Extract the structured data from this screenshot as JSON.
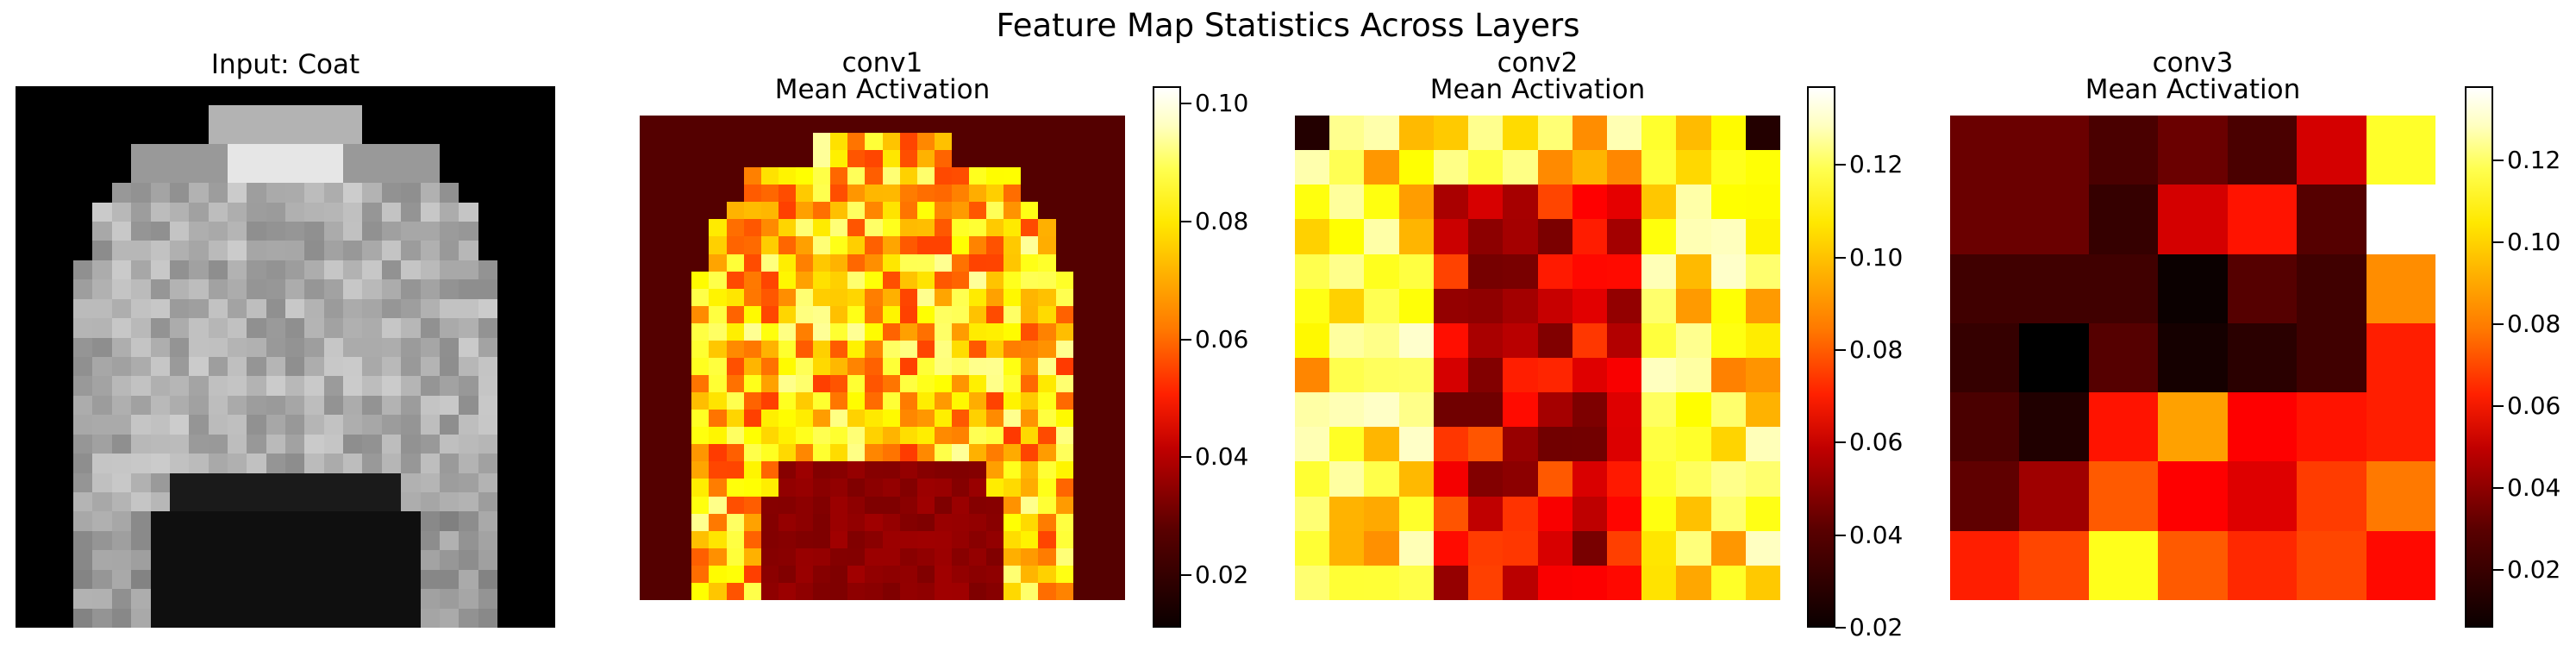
{
  "figure": {
    "title": "Feature Map Statistics Across Layers"
  },
  "chart_data": [
    {
      "type": "heatmap",
      "title": "Input: Coat",
      "colormap": "gray",
      "grid": false,
      "rows": 28,
      "cols": 28
    },
    {
      "type": "heatmap",
      "title": "conv1\nMean Activation",
      "colormap": "hot",
      "rows": 28,
      "cols": 28,
      "colorbar": {
        "vmin": 0.011,
        "vmax": 0.103,
        "ticks": [
          "0.02",
          "0.04",
          "0.06",
          "0.08",
          "0.10"
        ]
      }
    },
    {
      "type": "heatmap",
      "title": "conv2\nMean Activation",
      "colormap": "hot",
      "rows": 14,
      "cols": 14,
      "colorbar": {
        "vmin": 0.02,
        "vmax": 0.137,
        "ticks": [
          "0.02",
          "0.04",
          "0.06",
          "0.08",
          "0.10",
          "0.12"
        ]
      }
    },
    {
      "type": "heatmap",
      "title": "conv3\nMean Activation",
      "colormap": "hot",
      "rows": 7,
      "cols": 7,
      "colorbar": {
        "vmin": 0.006,
        "vmax": 0.138,
        "ticks": [
          "0.02",
          "0.04",
          "0.06",
          "0.08",
          "0.10",
          "0.12"
        ]
      },
      "values": [
        [
          0.026,
          0.026,
          0.02,
          0.026,
          0.02,
          0.046,
          0.11
        ],
        [
          0.026,
          0.026,
          0.016,
          0.046,
          0.058,
          0.022,
          0.138
        ],
        [
          0.018,
          0.018,
          0.018,
          0.008,
          0.022,
          0.018,
          0.082
        ],
        [
          0.016,
          0.006,
          0.022,
          0.01,
          0.014,
          0.018,
          0.06
        ],
        [
          0.02,
          0.012,
          0.058,
          0.086,
          0.054,
          0.058,
          0.06
        ],
        [
          0.024,
          0.036,
          0.072,
          0.054,
          0.048,
          0.066,
          0.078
        ],
        [
          0.06,
          0.068,
          0.108,
          0.072,
          0.062,
          0.068,
          0.056
        ]
      ]
    }
  ]
}
